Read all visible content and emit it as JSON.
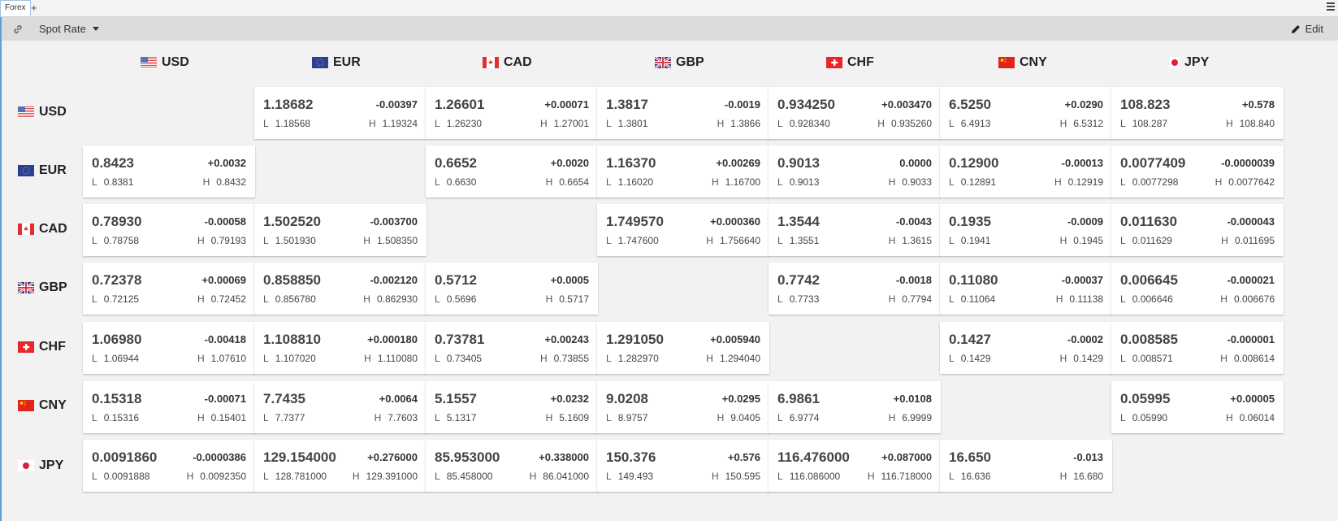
{
  "tab": {
    "label": "Forex",
    "add": "+"
  },
  "toolbar": {
    "spot_label": "Spot Rate",
    "edit_label": "Edit"
  },
  "labels": {
    "low": "L",
    "high": "H"
  },
  "currencies": [
    "USD",
    "EUR",
    "CAD",
    "GBP",
    "CHF",
    "CNY",
    "JPY"
  ],
  "rows": [
    {
      "currency": "USD",
      "cells": [
        null,
        {
          "rate": "1.18682",
          "change": "-0.00397",
          "low": "1.18568",
          "high": "1.19324"
        },
        {
          "rate": "1.26601",
          "change": "+0.00071",
          "low": "1.26230",
          "high": "1.27001"
        },
        {
          "rate": "1.3817",
          "change": "-0.0019",
          "low": "1.3801",
          "high": "1.3866"
        },
        {
          "rate": "0.934250",
          "change": "+0.003470",
          "low": "0.928340",
          "high": "0.935260"
        },
        {
          "rate": "6.5250",
          "change": "+0.0290",
          "low": "6.4913",
          "high": "6.5312"
        },
        {
          "rate": "108.823",
          "change": "+0.578",
          "low": "108.287",
          "high": "108.840"
        }
      ]
    },
    {
      "currency": "EUR",
      "cells": [
        {
          "rate": "0.8423",
          "change": "+0.0032",
          "low": "0.8381",
          "high": "0.8432"
        },
        null,
        {
          "rate": "0.6652",
          "change": "+0.0020",
          "low": "0.6630",
          "high": "0.6654"
        },
        {
          "rate": "1.16370",
          "change": "+0.00269",
          "low": "1.16020",
          "high": "1.16700"
        },
        {
          "rate": "0.9013",
          "change": "0.0000",
          "low": "0.9013",
          "high": "0.9033"
        },
        {
          "rate": "0.12900",
          "change": "-0.00013",
          "low": "0.12891",
          "high": "0.12919"
        },
        {
          "rate": "0.0077409",
          "change": "-0.0000039",
          "low": "0.0077298",
          "high": "0.0077642"
        }
      ]
    },
    {
      "currency": "CAD",
      "cells": [
        {
          "rate": "0.78930",
          "change": "-0.00058",
          "low": "0.78758",
          "high": "0.79193"
        },
        {
          "rate": "1.502520",
          "change": "-0.003700",
          "low": "1.501930",
          "high": "1.508350"
        },
        null,
        {
          "rate": "1.749570",
          "change": "+0.000360",
          "low": "1.747600",
          "high": "1.756640"
        },
        {
          "rate": "1.3544",
          "change": "-0.0043",
          "low": "1.3551",
          "high": "1.3615"
        },
        {
          "rate": "0.1935",
          "change": "-0.0009",
          "low": "0.1941",
          "high": "0.1945"
        },
        {
          "rate": "0.011630",
          "change": "-0.000043",
          "low": "0.011629",
          "high": "0.011695"
        }
      ]
    },
    {
      "currency": "GBP",
      "cells": [
        {
          "rate": "0.72378",
          "change": "+0.00069",
          "low": "0.72125",
          "high": "0.72452"
        },
        {
          "rate": "0.858850",
          "change": "-0.002120",
          "low": "0.856780",
          "high": "0.862930"
        },
        {
          "rate": "0.5712",
          "change": "+0.0005",
          "low": "0.5696",
          "high": "0.5717"
        },
        null,
        {
          "rate": "0.7742",
          "change": "-0.0018",
          "low": "0.7733",
          "high": "0.7794"
        },
        {
          "rate": "0.11080",
          "change": "-0.00037",
          "low": "0.11064",
          "high": "0.11138"
        },
        {
          "rate": "0.006645",
          "change": "-0.000021",
          "low": "0.006646",
          "high": "0.006676"
        }
      ]
    },
    {
      "currency": "CHF",
      "cells": [
        {
          "rate": "1.06980",
          "change": "-0.00418",
          "low": "1.06944",
          "high": "1.07610"
        },
        {
          "rate": "1.108810",
          "change": "+0.000180",
          "low": "1.107020",
          "high": "1.110080"
        },
        {
          "rate": "0.73781",
          "change": "+0.00243",
          "low": "0.73405",
          "high": "0.73855"
        },
        {
          "rate": "1.291050",
          "change": "+0.005940",
          "low": "1.282970",
          "high": "1.294040"
        },
        null,
        {
          "rate": "0.1427",
          "change": "-0.0002",
          "low": "0.1429",
          "high": "0.1429"
        },
        {
          "rate": "0.008585",
          "change": "-0.000001",
          "low": "0.008571",
          "high": "0.008614"
        }
      ]
    },
    {
      "currency": "CNY",
      "cells": [
        {
          "rate": "0.15318",
          "change": "-0.00071",
          "low": "0.15316",
          "high": "0.15401"
        },
        {
          "rate": "7.7435",
          "change": "+0.0064",
          "low": "7.7377",
          "high": "7.7603"
        },
        {
          "rate": "5.1557",
          "change": "+0.0232",
          "low": "5.1317",
          "high": "5.1609"
        },
        {
          "rate": "9.0208",
          "change": "+0.0295",
          "low": "8.9757",
          "high": "9.0405"
        },
        {
          "rate": "6.9861",
          "change": "+0.0108",
          "low": "6.9774",
          "high": "6.9999"
        },
        null,
        {
          "rate": "0.05995",
          "change": "+0.00005",
          "low": "0.05990",
          "high": "0.06014"
        }
      ]
    },
    {
      "currency": "JPY",
      "cells": [
        {
          "rate": "0.0091860",
          "change": "-0.0000386",
          "low": "0.0091888",
          "high": "0.0092350"
        },
        {
          "rate": "129.154000",
          "change": "+0.276000",
          "low": "128.781000",
          "high": "129.391000"
        },
        {
          "rate": "85.953000",
          "change": "+0.338000",
          "low": "85.458000",
          "high": "86.041000"
        },
        {
          "rate": "150.376",
          "change": "+0.576",
          "low": "149.493",
          "high": "150.595"
        },
        {
          "rate": "116.476000",
          "change": "+0.087000",
          "low": "116.086000",
          "high": "116.718000"
        },
        {
          "rate": "16.650",
          "change": "-0.013",
          "low": "16.636",
          "high": "16.680"
        },
        null
      ]
    }
  ]
}
